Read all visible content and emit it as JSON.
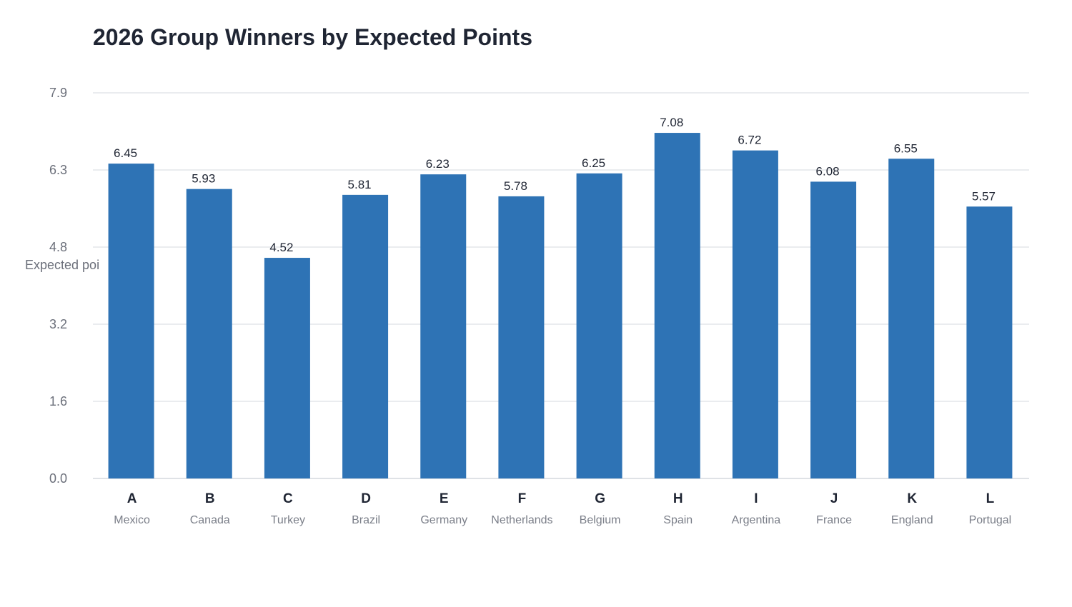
{
  "chart_data": {
    "type": "bar",
    "title": "2026 Group Winners by Expected Points",
    "ylabel": "Expected poi",
    "xlabel": "",
    "categories": [
      "A",
      "B",
      "C",
      "D",
      "E",
      "F",
      "G",
      "H",
      "I",
      "J",
      "K",
      "L"
    ],
    "sublabels": [
      "Mexico",
      "Canada",
      "Turkey",
      "Brazil",
      "Germany",
      "Netherlands",
      "Belgium",
      "Spain",
      "Argentina",
      "France",
      "England",
      "Portugal"
    ],
    "values": [
      6.45,
      5.93,
      4.52,
      5.81,
      6.23,
      5.78,
      6.25,
      7.08,
      6.72,
      6.08,
      6.55,
      5.57
    ],
    "value_labels": [
      "6.45",
      "5.93",
      "4.52",
      "5.81",
      "6.23",
      "5.78",
      "6.25",
      "7.08",
      "6.72",
      "6.08",
      "6.55",
      "5.57"
    ],
    "yticks": [
      "0.0",
      "1.6",
      "3.2",
      "4.8",
      "6.3",
      "7.9"
    ],
    "ylim": [
      0,
      7.9
    ],
    "grid": true,
    "bar_color": "#2e73b5",
    "grid_color": "#e4e6ea"
  }
}
